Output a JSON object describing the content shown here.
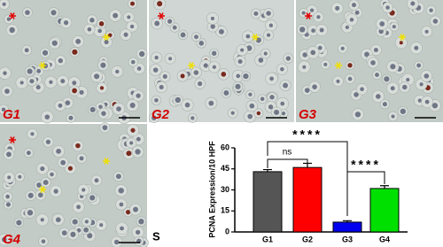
{
  "panels": [
    {
      "label": "G1"
    },
    {
      "label": "G2"
    },
    {
      "label": "G3"
    },
    {
      "label": "G4"
    }
  ],
  "chart_label": "S",
  "chart_data": {
    "type": "bar",
    "ylabel": "PCNA Expression/10 HPF",
    "categories": [
      "G1",
      "G2",
      "G3",
      "G4"
    ],
    "values": [
      43,
      46,
      7,
      31
    ],
    "errors": [
      1.5,
      3,
      1,
      2
    ],
    "colors": [
      "#555555",
      "#ff0000",
      "#0000ee",
      "#00e000"
    ],
    "ylim": [
      0,
      60
    ],
    "yticks": [
      0,
      15,
      30,
      45,
      60
    ],
    "annotations": [
      "ns",
      "****",
      "****"
    ]
  }
}
